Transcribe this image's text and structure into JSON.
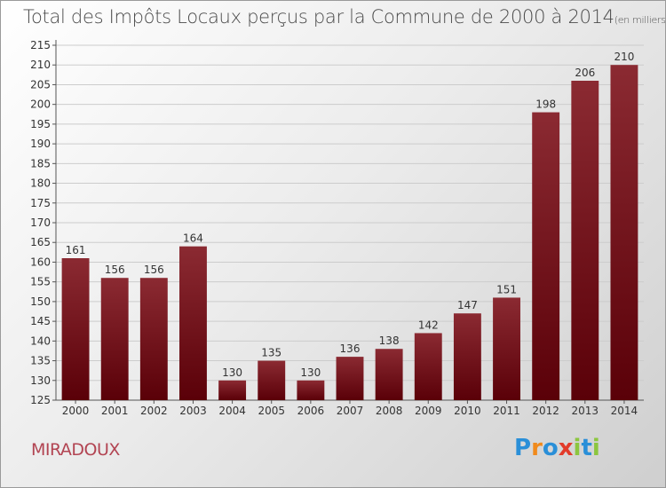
{
  "header": {
    "title": "Total des Impôts Locaux perçus par la Commune de 2000 à 2014",
    "unit": "(en milliers d'€)"
  },
  "footer": {
    "commune": "MIRADOUX",
    "logo_letters": [
      {
        "ch": "P",
        "color": "#2a8fd8"
      },
      {
        "ch": "r",
        "color": "#f08a1c"
      },
      {
        "ch": "o",
        "color": "#2a8fd8"
      },
      {
        "ch": "x",
        "color": "#e23b2a"
      },
      {
        "ch": "i",
        "color": "#8cc63f"
      },
      {
        "ch": "t",
        "color": "#2a8fd8"
      },
      {
        "ch": "i",
        "color": "#8cc63f"
      }
    ]
  },
  "colors": {
    "bar_top": "#8b2a32",
    "bar_bottom": "#5a0008",
    "axis": "#555555",
    "grid": "#cccccc"
  },
  "chart_data": {
    "type": "bar",
    "categories": [
      "2000",
      "2001",
      "2002",
      "2003",
      "2004",
      "2005",
      "2006",
      "2007",
      "2008",
      "2009",
      "2010",
      "2011",
      "2012",
      "2013",
      "2014"
    ],
    "values": [
      161,
      156,
      156,
      164,
      130,
      135,
      130,
      136,
      138,
      142,
      147,
      151,
      198,
      206,
      210
    ],
    "ylim": [
      125,
      215
    ],
    "yticks": [
      125,
      130,
      135,
      140,
      145,
      150,
      155,
      160,
      165,
      170,
      175,
      180,
      185,
      190,
      195,
      200,
      205,
      210,
      215
    ],
    "grid": true,
    "data_labels": true
  }
}
